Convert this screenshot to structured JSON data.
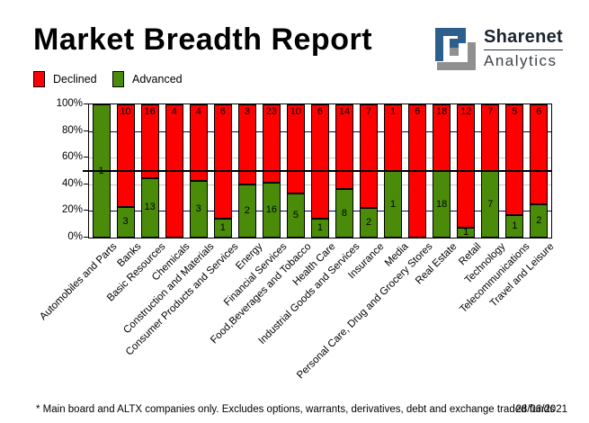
{
  "header": {
    "title": "Market Breadth Report",
    "logo": {
      "name": "Sharenet",
      "sub": "Analytics",
      "blue": "#2d5f8c",
      "gray": "#909090"
    }
  },
  "legend": [
    {
      "label": "Declined",
      "color": "#fe0000"
    },
    {
      "label": "Advanced",
      "color": "#4a8c0a"
    }
  ],
  "chart_data": {
    "type": "bar",
    "subtype": "stacked-100-percent",
    "title": "Market Breadth Report",
    "categories": [
      "Automobiles and Parts",
      "Banks",
      "Basic Resources",
      "Chemicals",
      "Construction and Materials",
      "Consumer Products and Services",
      "Energy",
      "Financial Services",
      "Food,Beverages and Tobacco",
      "Health Care",
      "Industrial Goods and Services",
      "Insurance",
      "Media",
      "Personal Care, Drug and Grocery Stores",
      "Real Estate",
      "Retail",
      "Technology",
      "Telecommunications",
      "Travel and Leisure"
    ],
    "series": [
      {
        "name": "Declined",
        "color": "#fe0000",
        "values": [
          0,
          10,
          16,
          4,
          4,
          6,
          3,
          23,
          10,
          6,
          14,
          7,
          1,
          6,
          18,
          12,
          7,
          5,
          6
        ]
      },
      {
        "name": "Advanced",
        "color": "#4a8c0a",
        "values": [
          1,
          3,
          13,
          0,
          3,
          1,
          2,
          16,
          5,
          1,
          8,
          2,
          1,
          0,
          18,
          1,
          7,
          1,
          2
        ]
      }
    ],
    "y_ticks": [
      "100%",
      "80%",
      "60%",
      "40%",
      "20%",
      "0%"
    ],
    "ylim": [
      0,
      100
    ],
    "ylabel": "",
    "xlabel": "",
    "legend_position": "top-left",
    "grid": "horizontal, navy at 20/80, gray at 40/60, solid black at 50"
  },
  "footer": {
    "note": "* Main board and ALTX companies only. Excludes options, warrants, derivatives, debt and exchange traded funds",
    "date": "28/06/2021"
  }
}
